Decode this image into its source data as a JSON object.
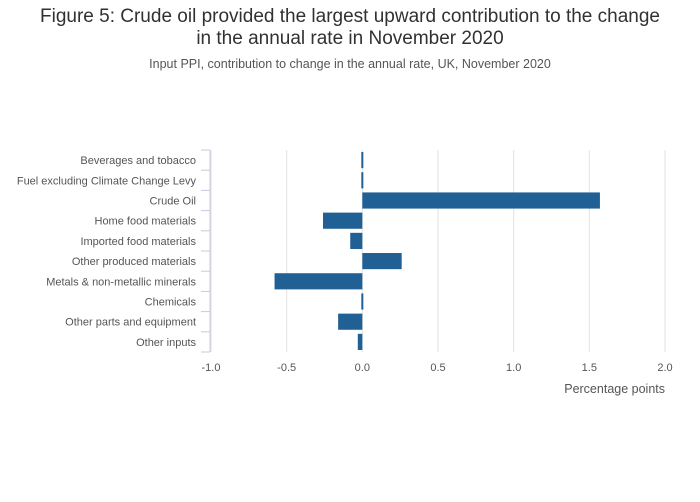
{
  "chart_data": {
    "type": "bar",
    "orientation": "horizontal",
    "title_line1": "Figure 5: Crude oil provided the largest upward contribution to the change",
    "title_line2": "in the annual rate in November 2020",
    "subtitle": "Input PPI, contribution to change in the annual rate, UK, November 2020",
    "xlabel": "Percentage points",
    "ylabel": "",
    "xlim": [
      -1.0,
      2.0
    ],
    "xticks": [
      "-1.0",
      "-0.5",
      "0.0",
      "0.5",
      "1.0",
      "1.5",
      "2.0"
    ],
    "xtick_values": [
      -1.0,
      -0.5,
      0.0,
      0.5,
      1.0,
      1.5,
      2.0
    ],
    "categories": [
      "Beverages and tobacco",
      "Fuel excluding Climate Change Levy",
      "Crude Oil",
      "Home food materials",
      "Imported food materials",
      "Other produced materials",
      "Metals & non-metallic minerals",
      "Chemicals",
      "Other parts and equipment",
      "Other inputs"
    ],
    "values": [
      -0.01,
      -0.01,
      1.57,
      -0.26,
      -0.08,
      0.26,
      -0.58,
      -0.01,
      -0.16,
      -0.03
    ],
    "bar_color": "#206095",
    "grid": true
  }
}
